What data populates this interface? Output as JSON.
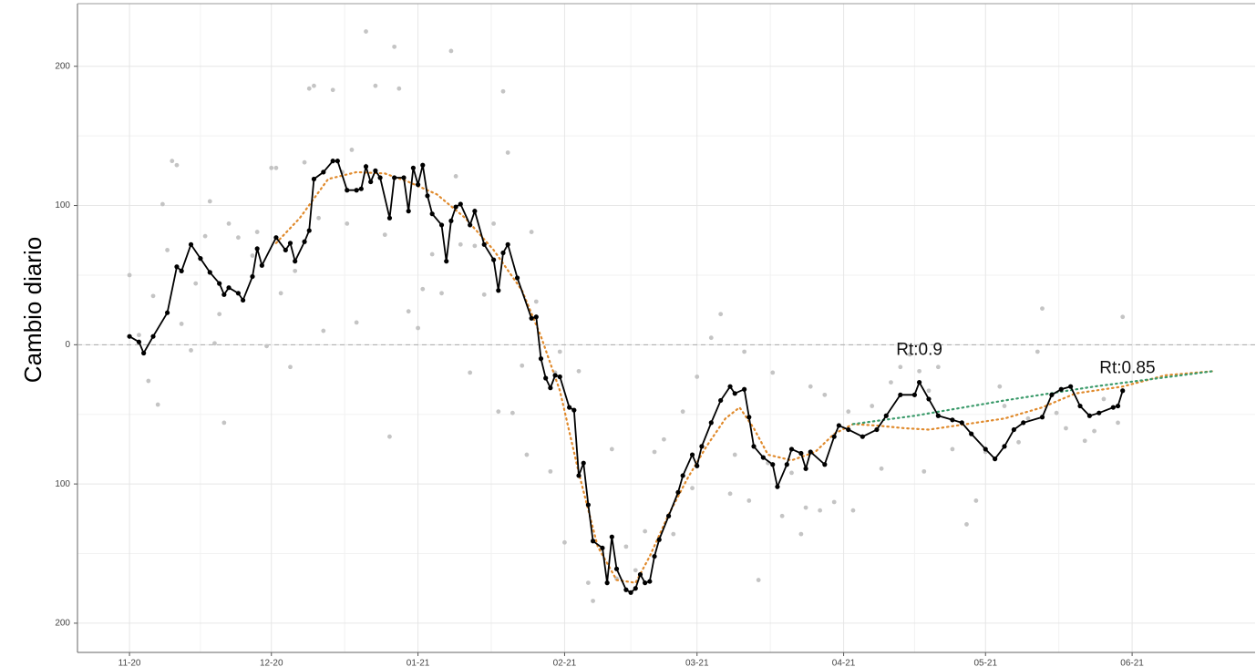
{
  "chart_data": {
    "type": "line",
    "y_label": "Cambio diario",
    "xlim": [
      -11,
      238
    ],
    "ylim": [
      -221,
      245
    ],
    "xticks": [
      {
        "value": 0,
        "label": "11-20"
      },
      {
        "value": 30,
        "label": "12-20"
      },
      {
        "value": 61,
        "label": "01-21"
      },
      {
        "value": 92,
        "label": "02-21"
      },
      {
        "value": 120,
        "label": "03-21"
      },
      {
        "value": 151,
        "label": "04-21"
      },
      {
        "value": 181,
        "label": "05-21"
      },
      {
        "value": 212,
        "label": "06-21"
      }
    ],
    "yticks": [
      {
        "value": -200,
        "label": "200"
      },
      {
        "value": -100,
        "label": "100"
      },
      0,
      100,
      200
    ],
    "grid": true,
    "hline": 0,
    "series": [
      {
        "kind": "scatter",
        "color": "#c4c4c4",
        "x": [
          0,
          2,
          4,
          5,
          6,
          7,
          8,
          9,
          10,
          11,
          13,
          14,
          16,
          17,
          18,
          19,
          20,
          21,
          23,
          26,
          27,
          29,
          30,
          31,
          32,
          34,
          35,
          37,
          38,
          39,
          40,
          41,
          43,
          45,
          46,
          47,
          48,
          50,
          52,
          54,
          55,
          56,
          57,
          59,
          61,
          62,
          64,
          66,
          68,
          69,
          70,
          72,
          73,
          75,
          77,
          78,
          79,
          80,
          81,
          83,
          84,
          85,
          86,
          89,
          90,
          91,
          92,
          95,
          97,
          98,
          102,
          103,
          105,
          107,
          109,
          111,
          113,
          115,
          117,
          119,
          120,
          123,
          125,
          127,
          128,
          130,
          131,
          133,
          135,
          136,
          138,
          140,
          142,
          143,
          144,
          146,
          147,
          149,
          152,
          153,
          157,
          159,
          161,
          163,
          165,
          167,
          168,
          169,
          171,
          174,
          177,
          179,
          181,
          184,
          185,
          188,
          190,
          192,
          193,
          196,
          198,
          202,
          204,
          206,
          209,
          210
        ],
        "values": [
          50,
          7,
          -26,
          35,
          -43,
          101,
          68,
          132,
          129,
          15,
          -4,
          44,
          78,
          103,
          1,
          22,
          -56,
          87,
          77,
          64,
          81,
          -1,
          127,
          127,
          37,
          -16,
          53,
          131,
          184,
          186,
          91,
          10,
          183,
          124,
          87,
          140,
          16,
          225,
          186,
          79,
          -66,
          214,
          184,
          24,
          12,
          40,
          65,
          37,
          211,
          121,
          72,
          -20,
          71,
          36,
          87,
          -48,
          182,
          138,
          -49,
          -15,
          -79,
          81,
          31,
          -91,
          -20,
          -5,
          -142,
          -19,
          -171,
          -184,
          -75,
          -168,
          -145,
          -162,
          -134,
          -77,
          -68,
          -136,
          -48,
          -103,
          -23,
          5,
          22,
          -107,
          -79,
          -5,
          -112,
          -169,
          -85,
          -20,
          -123,
          -92,
          -136,
          -117,
          -30,
          -119,
          -36,
          -113,
          -48,
          -119,
          -44,
          -89,
          -27,
          -16,
          -7,
          -19,
          -91,
          -33,
          -16,
          -75,
          -129,
          -112,
          -77,
          -30,
          -44,
          -70,
          -53,
          -5,
          26,
          -49,
          -60,
          -69,
          -62,
          -39,
          -56,
          20
        ]
      },
      {
        "kind": "dotted",
        "color": "#e08a2c",
        "x": [
          31,
          36,
          42,
          48,
          54,
          59,
          65,
          71,
          77,
          83,
          87,
          91,
          95,
          99,
          103,
          107,
          110,
          114,
          118,
          122,
          126,
          129,
          132,
          135,
          140,
          145,
          149,
          153,
          158,
          164,
          169,
          177,
          185,
          193,
          200,
          210,
          219,
          229
        ],
        "values": [
          73,
          91,
          119,
          124,
          123,
          117,
          108,
          91,
          68,
          39,
          6,
          -33,
          -92,
          -145,
          -169,
          -171,
          -152,
          -122,
          -96,
          -73,
          -53,
          -45,
          -60,
          -79,
          -83,
          -77,
          -64,
          -57,
          -58,
          -60,
          -61,
          -57,
          -53,
          -45,
          -35,
          -30,
          -22,
          -19
        ]
      },
      {
        "kind": "dotted",
        "color": "#3a9a6a",
        "x": [
          153,
          166,
          185,
          204,
          229
        ],
        "values": [
          -57,
          -51,
          -40,
          -30,
          -19
        ]
      },
      {
        "kind": "line-points",
        "color": "#000000",
        "x": [
          0,
          2,
          3,
          5,
          8,
          10,
          11,
          13,
          15,
          17,
          19,
          20,
          21,
          23,
          24,
          26,
          27,
          28,
          31,
          33,
          34,
          35,
          37,
          38,
          39,
          41,
          43,
          44,
          46,
          48,
          49,
          50,
          51,
          52,
          53,
          55,
          56,
          58,
          59,
          60,
          61,
          62,
          63,
          64,
          66,
          67,
          68,
          69,
          70,
          72,
          73,
          75,
          77,
          78,
          79,
          80,
          82,
          85,
          86,
          87,
          88,
          89,
          90,
          91,
          93,
          94,
          95,
          96,
          97,
          98,
          100,
          101,
          102,
          103,
          105,
          106,
          107,
          108,
          109,
          110,
          111,
          112,
          114,
          116,
          117,
          119,
          120,
          121,
          123,
          125,
          127,
          128,
          130,
          131,
          132,
          134,
          136,
          137,
          139,
          140,
          142,
          143,
          144,
          147,
          149,
          150,
          152,
          155,
          158,
          160,
          163,
          166,
          167,
          169,
          171,
          174,
          176,
          178,
          181,
          183,
          185,
          187,
          189,
          193,
          195,
          197,
          199,
          201,
          203,
          205,
          208,
          209,
          210
        ],
        "values": [
          6,
          2,
          -6,
          6,
          23,
          56,
          53,
          72,
          62,
          52,
          44,
          36,
          41,
          37,
          32,
          49,
          69,
          57,
          77,
          68,
          73,
          60,
          74,
          82,
          119,
          124,
          132,
          132,
          111,
          111,
          112,
          128,
          117,
          125,
          120,
          91,
          120,
          120,
          96,
          127,
          115,
          129,
          107,
          94,
          86,
          60,
          89,
          99,
          101,
          86,
          96,
          72,
          61,
          39,
          66,
          72,
          48,
          19,
          20,
          -10,
          -24,
          -31,
          -22,
          -23,
          -45,
          -47,
          -94,
          -85,
          -115,
          -141,
          -146,
          -171,
          -138,
          -161,
          -176,
          -178,
          -175,
          -165,
          -171,
          -170,
          -152,
          -140,
          -123,
          -106,
          -94,
          -79,
          -87,
          -73,
          -56,
          -40,
          -30,
          -35,
          -32,
          -52,
          -73,
          -81,
          -86,
          -102,
          -86,
          -75,
          -78,
          -89,
          -77,
          -86,
          -66,
          -58,
          -61,
          -66,
          -61,
          -51,
          -36,
          -36,
          -27,
          -39,
          -51,
          -54,
          -56,
          -64,
          -75,
          -82,
          -73,
          -61,
          -56,
          -52,
          -36,
          -32,
          -30,
          -44,
          -51,
          -49,
          -45,
          -44,
          -33
        ]
      }
    ],
    "annotations": [
      {
        "text": "Rt:0.9",
        "x": 167,
        "y": -4
      },
      {
        "text": "Rt:0.85",
        "x": 211,
        "y": -17
      }
    ]
  }
}
